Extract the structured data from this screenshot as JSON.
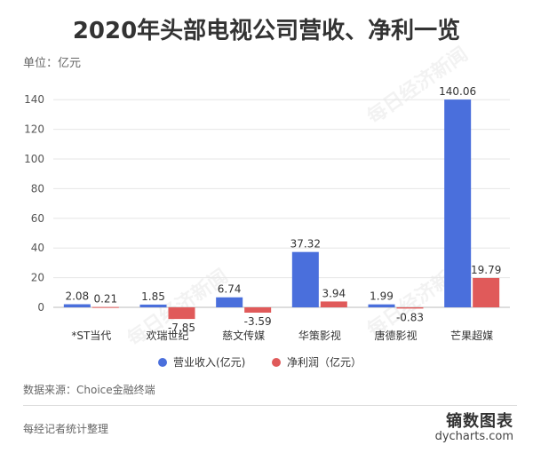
{
  "header": {
    "title": "2020年头部电视公司营收、净利一览",
    "unit": "单位：亿元"
  },
  "footer": {
    "source": "数据来源：Choice金融终端",
    "reporter": "每经记者统计整理",
    "brand_name": "镝数图表",
    "brand_url": "dycharts.com"
  },
  "watermark": "每日经济新闻",
  "chart_data": {
    "type": "bar",
    "categories": [
      "*ST当代",
      "欢瑞世纪",
      "慈文传媒",
      "华策影视",
      "唐德影视",
      "芒果超媒"
    ],
    "series": [
      {
        "name": "营业收入(亿元)",
        "color": "#4a6fdc",
        "values": [
          2.08,
          1.85,
          6.74,
          37.32,
          1.99,
          140.06
        ]
      },
      {
        "name": "净利润（亿元）",
        "color": "#e05a5a",
        "values": [
          0.21,
          -7.85,
          -3.59,
          3.94,
          -0.83,
          19.79
        ]
      }
    ],
    "ylim": [
      -10,
      150
    ],
    "yticks": [
      0,
      20,
      40,
      60,
      80,
      100,
      120,
      140
    ],
    "grid": true,
    "legend_position": "bottom"
  }
}
